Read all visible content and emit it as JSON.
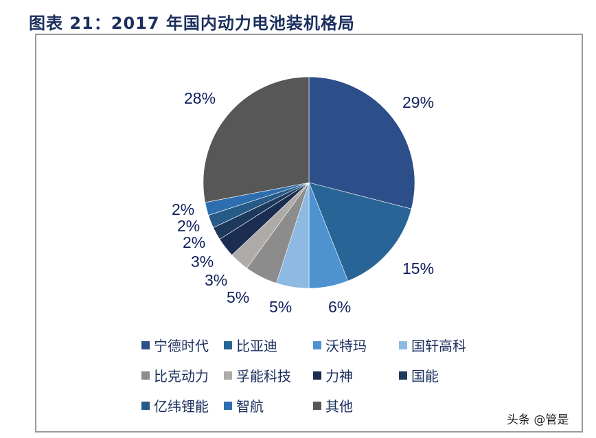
{
  "header": {
    "title": "图表 21：2017 年国内动力电池装机格局"
  },
  "watermark": "头条 @管是",
  "chart_data": {
    "type": "pie",
    "title": "图表 21：2017 年国内动力电池装机格局",
    "categories": [
      "宁德时代",
      "比亚迪",
      "沃特玛",
      "国轩高科",
      "比克动力",
      "孚能科技",
      "力神",
      "国能",
      "亿纬锂能",
      "智航",
      "其他"
    ],
    "values": [
      29,
      15,
      6,
      5,
      5,
      3,
      3,
      2,
      2,
      2,
      28
    ],
    "labels": [
      "29%",
      "15%",
      "6%",
      "5%",
      "5%",
      "3%",
      "3%",
      "2%",
      "2%",
      "2%",
      "28%"
    ],
    "colors": [
      "#2c4f8a",
      "#296496",
      "#4e92d0",
      "#8db9e2",
      "#8c8c8c",
      "#aeaaa8",
      "#1c2d52",
      "#1d3a5c",
      "#265a87",
      "#2d6fae",
      "#575757"
    ],
    "legend_position": "bottom",
    "start_angle": "12 o'clock, clockwise"
  },
  "legend": {
    "items": [
      {
        "label": "宁德时代"
      },
      {
        "label": "比亚迪"
      },
      {
        "label": "沃特玛"
      },
      {
        "label": "国轩高科"
      },
      {
        "label": "比克动力"
      },
      {
        "label": "孚能科技"
      },
      {
        "label": "力神"
      },
      {
        "label": "国能"
      },
      {
        "label": "亿纬锂能"
      },
      {
        "label": "智航"
      },
      {
        "label": "其他"
      }
    ]
  }
}
